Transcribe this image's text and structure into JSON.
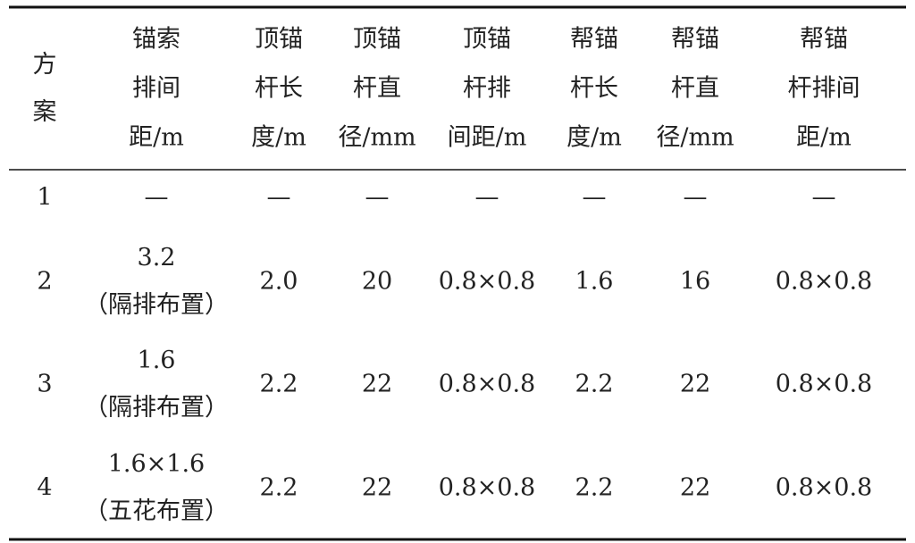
{
  "table": {
    "header": [
      [
        "方",
        "案"
      ],
      [
        "锚索",
        "排间",
        "距/m"
      ],
      [
        "顶锚",
        "杆长",
        "度/m"
      ],
      [
        "顶锚",
        "杆直",
        "径/mm"
      ],
      [
        "顶锚",
        "杆排",
        "间距/m"
      ],
      [
        "帮锚",
        "杆长",
        "度/m"
      ],
      [
        "帮锚",
        "杆直",
        "径/mm"
      ],
      [
        "帮锚",
        "杆排间",
        "距/m"
      ]
    ],
    "rows": [
      [
        [
          "1"
        ],
        [
          "—"
        ],
        [
          "—"
        ],
        [
          "—"
        ],
        [
          "—"
        ],
        [
          "—"
        ],
        [
          "—"
        ],
        [
          "—"
        ]
      ],
      [
        [
          "2"
        ],
        [
          "3.2",
          "（隔排布置）"
        ],
        [
          "2.0"
        ],
        [
          "20"
        ],
        [
          "0.8×0.8"
        ],
        [
          "1.6"
        ],
        [
          "16"
        ],
        [
          "0.8×0.8"
        ]
      ],
      [
        [
          "3"
        ],
        [
          "1.6",
          "（隔排布置）"
        ],
        [
          "2.2"
        ],
        [
          "22"
        ],
        [
          "0.8×0.8"
        ],
        [
          "2.2"
        ],
        [
          "22"
        ],
        [
          "0.8×0.8"
        ]
      ],
      [
        [
          "4"
        ],
        [
          "1.6×1.6",
          "（五花布置）"
        ],
        [
          "2.2"
        ],
        [
          "22"
        ],
        [
          "0.8×0.8"
        ],
        [
          "2.2"
        ],
        [
          "22"
        ],
        [
          "0.8×0.8"
        ]
      ]
    ]
  }
}
